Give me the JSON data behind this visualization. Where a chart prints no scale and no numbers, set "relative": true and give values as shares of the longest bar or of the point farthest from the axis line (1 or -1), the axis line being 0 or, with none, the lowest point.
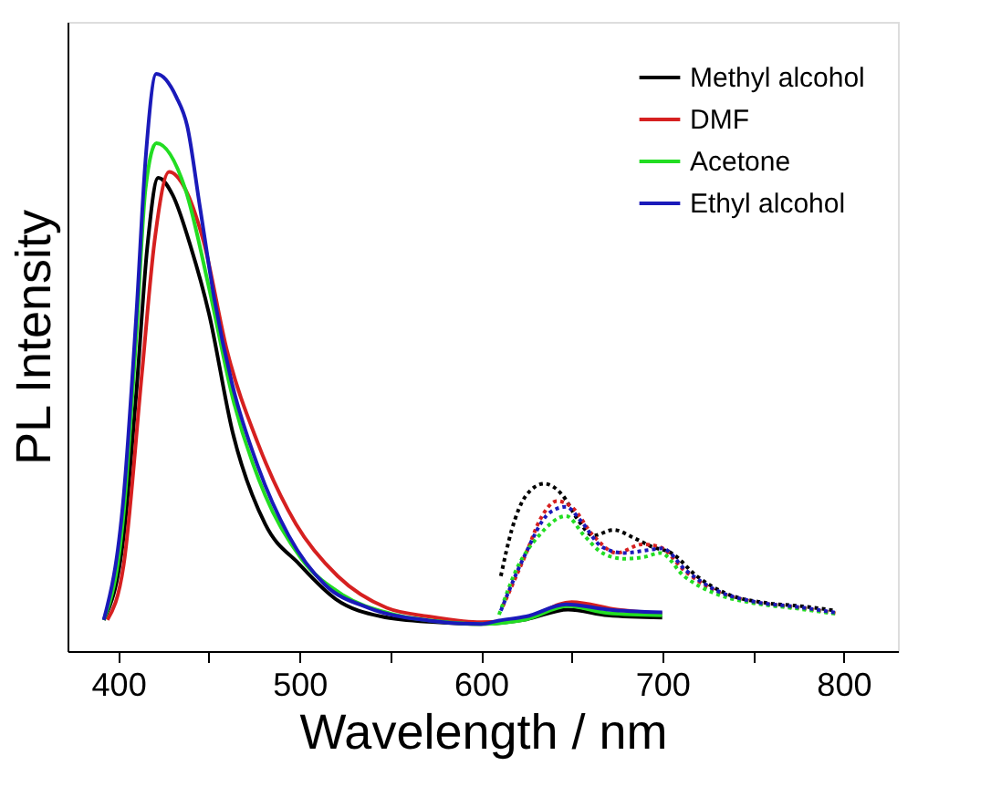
{
  "chart_data": {
    "type": "line",
    "relative": true,
    "xlabel": "Wavelength / nm",
    "ylabel": "PL Intensity",
    "xlim": [
      372,
      830
    ],
    "xticks": [
      400,
      {
        "value": 450,
        "label": null
      },
      500,
      {
        "value": 550,
        "label": null
      },
      600,
      {
        "value": 650,
        "label": null
      },
      700,
      {
        "value": 750,
        "label": null
      },
      800
    ],
    "grid": false,
    "legend": "top right",
    "line_style": "solid",
    "series": [
      {
        "name": "Methyl alcohol",
        "color": "#000000",
        "x": [
          392,
          403,
          410,
          416,
          422,
          430,
          440,
          450,
          463,
          481,
          500,
          520,
          545,
          575,
          600,
          625,
          648,
          670,
          700
        ],
        "values": [
          0.054,
          0.2,
          0.45,
          0.7,
          0.82,
          0.79,
          0.7,
          0.585,
          0.38,
          0.22,
          0.15,
          0.09,
          0.06,
          0.05,
          0.047,
          0.055,
          0.072,
          0.062,
          0.058
        ]
      },
      {
        "name": "DMF",
        "color": "#d62020",
        "x": [
          394,
          403,
          413,
          420,
          428,
          437,
          447,
          460,
          477,
          498,
          521,
          548,
          571,
          600,
          625,
          650,
          675,
          700
        ],
        "values": [
          0.054,
          0.15,
          0.48,
          0.71,
          0.83,
          0.8,
          0.71,
          0.52,
          0.36,
          0.22,
          0.13,
          0.075,
          0.06,
          0.05,
          0.058,
          0.085,
          0.072,
          0.065
        ]
      },
      {
        "name": "Acetone",
        "color": "#22dd22",
        "x": [
          392,
          403,
          410,
          415,
          421,
          437,
          450,
          463,
          481,
          501,
          524,
          550,
          575,
          600,
          625,
          648,
          670,
          700
        ],
        "values": [
          0.054,
          0.24,
          0.55,
          0.8,
          0.88,
          0.8,
          0.63,
          0.44,
          0.27,
          0.16,
          0.097,
          0.065,
          0.052,
          0.047,
          0.055,
          0.078,
          0.066,
          0.062
        ]
      },
      {
        "name": "Ethyl alcohol",
        "color": "#1a1aba",
        "x": [
          392,
          403,
          410,
          415,
          421,
          432,
          438,
          445,
          453,
          463,
          477,
          494,
          514,
          538,
          571,
          600,
          610,
          625,
          647,
          670,
          700
        ],
        "values": [
          0.054,
          0.27,
          0.585,
          0.85,
          1.0,
          0.96,
          0.91,
          0.77,
          0.61,
          0.46,
          0.32,
          0.2,
          0.115,
          0.075,
          0.053,
          0.047,
          0.053,
          0.06,
          0.081,
          0.072,
          0.067
        ]
      },
      {
        "color": "#000000",
        "line_style": "dotted",
        "x": [
          611,
          617,
          625,
          635,
          645,
          653,
          662,
          673,
          685,
          695,
          705,
          719,
          735,
          756,
          776,
          796
        ],
        "values": [
          0.13,
          0.21,
          0.27,
          0.29,
          0.27,
          0.23,
          0.2,
          0.21,
          0.195,
          0.18,
          0.17,
          0.13,
          0.1,
          0.084,
          0.078,
          0.07
        ]
      },
      {
        "color": "#d62020",
        "line_style": "dotted",
        "x": [
          612,
          625,
          633,
          642,
          650,
          662,
          675,
          689,
          699,
          712,
          729,
          749,
          776,
          797
        ],
        "values": [
          0.077,
          0.17,
          0.23,
          0.26,
          0.25,
          0.2,
          0.17,
          0.185,
          0.18,
          0.14,
          0.105,
          0.086,
          0.075,
          0.065
        ]
      },
      {
        "color": "#22dd22",
        "line_style": "dotted",
        "x": [
          610,
          620,
          632,
          647,
          657,
          667,
          679,
          690,
          699,
          712,
          729,
          749,
          776,
          797
        ],
        "values": [
          0.063,
          0.144,
          0.2,
          0.234,
          0.2,
          0.17,
          0.16,
          0.163,
          0.17,
          0.13,
          0.1,
          0.084,
          0.073,
          0.064
        ]
      },
      {
        "color": "#1a1aba",
        "line_style": "dotted",
        "x": [
          611,
          623,
          638,
          647,
          655,
          667,
          679,
          692,
          700,
          713,
          730,
          750,
          776,
          797
        ],
        "values": [
          0.07,
          0.158,
          0.24,
          0.25,
          0.226,
          0.18,
          0.17,
          0.175,
          0.178,
          0.14,
          0.105,
          0.086,
          0.076,
          0.066
        ]
      }
    ]
  }
}
